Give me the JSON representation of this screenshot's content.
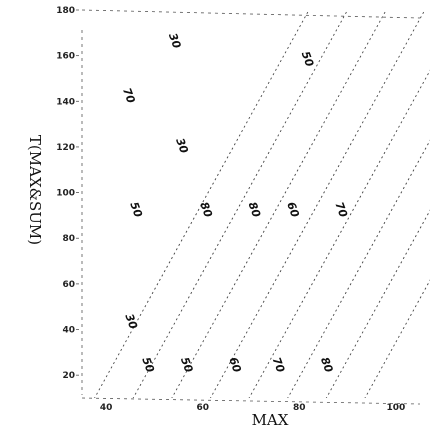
{
  "chart_data": {
    "type": "line",
    "title": "",
    "xlabel": "MAX",
    "ylabel": "T(MAX&SUM)",
    "xlim": [
      35,
      105
    ],
    "ylim": [
      10,
      180
    ],
    "x_ticks": [
      "40",
      "60",
      "80",
      "100"
    ],
    "y_ticks": [
      "20",
      "40",
      "60",
      "80",
      "100",
      "120",
      "140",
      "160",
      "180"
    ],
    "grid": false,
    "series": [
      {
        "label": "",
        "points": [
          [
            35,
            0
          ],
          [
            82,
            180
          ]
        ]
      },
      {
        "label": "",
        "points": [
          [
            43,
            0
          ],
          [
            90,
            180
          ]
        ]
      },
      {
        "label": "",
        "points": [
          [
            51,
            0
          ],
          [
            98,
            180
          ]
        ]
      },
      {
        "label": "",
        "points": [
          [
            59,
            0
          ],
          [
            106,
            180
          ]
        ]
      },
      {
        "label": "",
        "points": [
          [
            67,
            0
          ],
          [
            114,
            180
          ]
        ]
      },
      {
        "label": "",
        "points": [
          [
            75,
            0
          ],
          [
            122,
            180
          ]
        ]
      },
      {
        "label": "",
        "points": [
          [
            83,
            0
          ],
          [
            130,
            180
          ]
        ]
      },
      {
        "label": "",
        "points": [
          [
            91,
            0
          ],
          [
            138,
            180
          ]
        ]
      }
    ],
    "contour_labels": [
      {
        "text": "30",
        "x": 53.5,
        "y": 166
      },
      {
        "text": "50",
        "x": 81,
        "y": 158
      },
      {
        "text": "70",
        "x": 44,
        "y": 142
      },
      {
        "text": "30",
        "x": 55,
        "y": 120
      },
      {
        "text": "50",
        "x": 45.5,
        "y": 92
      },
      {
        "text": "80",
        "x": 60,
        "y": 92
      },
      {
        "text": "80",
        "x": 70,
        "y": 92
      },
      {
        "text": "60",
        "x": 78,
        "y": 92
      },
      {
        "text": "70",
        "x": 88,
        "y": 92
      },
      {
        "text": "30",
        "x": 44.5,
        "y": 43
      },
      {
        "text": "50",
        "x": 48,
        "y": 24
      },
      {
        "text": "50",
        "x": 56,
        "y": 24
      },
      {
        "text": "60",
        "x": 66,
        "y": 24
      },
      {
        "text": "70",
        "x": 75,
        "y": 24
      },
      {
        "text": "80",
        "x": 85,
        "y": 24
      }
    ]
  }
}
